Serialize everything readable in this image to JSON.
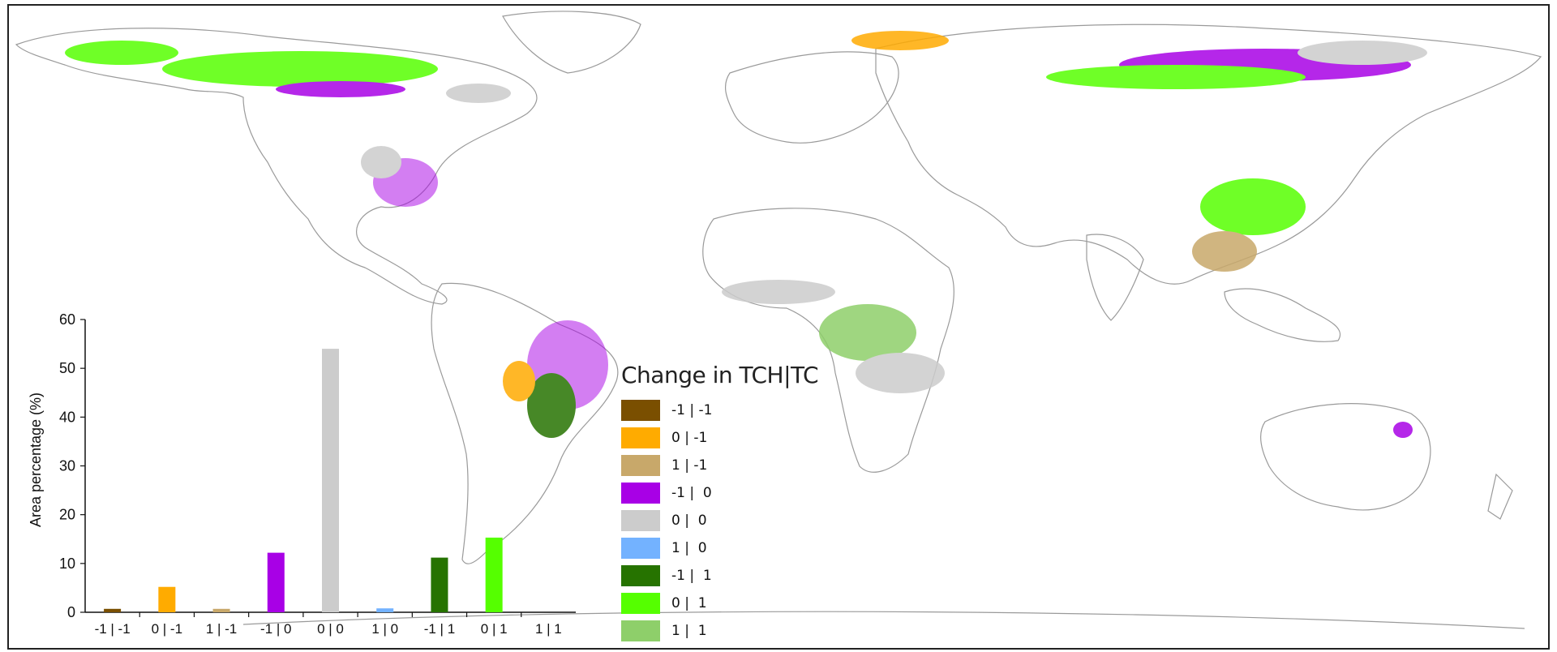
{
  "legend": {
    "title": "Change in TCH|TC",
    "items": [
      {
        "label": "-1 | -1",
        "color": "#7a4f00"
      },
      {
        "label": "0 | -1",
        "color": "#ffab00"
      },
      {
        "label": "1 | -1",
        "color": "#c8a86a"
      },
      {
        "label": "-1 |  0",
        "color": "#a800e6"
      },
      {
        "label": "0 |  0",
        "color": "#cccccc"
      },
      {
        "label": "1 |  0",
        "color": "#73b2ff"
      },
      {
        "label": "-1 |  1",
        "color": "#267300"
      },
      {
        "label": "0 |  1",
        "color": "#55ff00"
      },
      {
        "label": "1 |  1",
        "color": "#8ecf6a"
      }
    ]
  },
  "chart_data": {
    "type": "bar",
    "ylabel": "Area percentage (%)",
    "xlabel": "",
    "title": "",
    "ylim": [
      0,
      60
    ],
    "yticks": [
      0,
      10,
      20,
      30,
      40,
      50,
      60
    ],
    "categories": [
      "-1 | -1",
      "0 | -1",
      "1 | -1",
      "-1 | 0",
      "0 | 0",
      "1 | 0",
      "-1 | 1",
      "0 | 1",
      "1 | 1"
    ],
    "values": [
      0.7,
      5.2,
      0.7,
      12.2,
      54.0,
      0.8,
      11.2,
      15.3,
      0.0
    ],
    "colors": [
      "#7a4f00",
      "#ffab00",
      "#c8a86a",
      "#a800e6",
      "#cccccc",
      "#73b2ff",
      "#267300",
      "#55ff00",
      "#8ecf6a"
    ]
  }
}
